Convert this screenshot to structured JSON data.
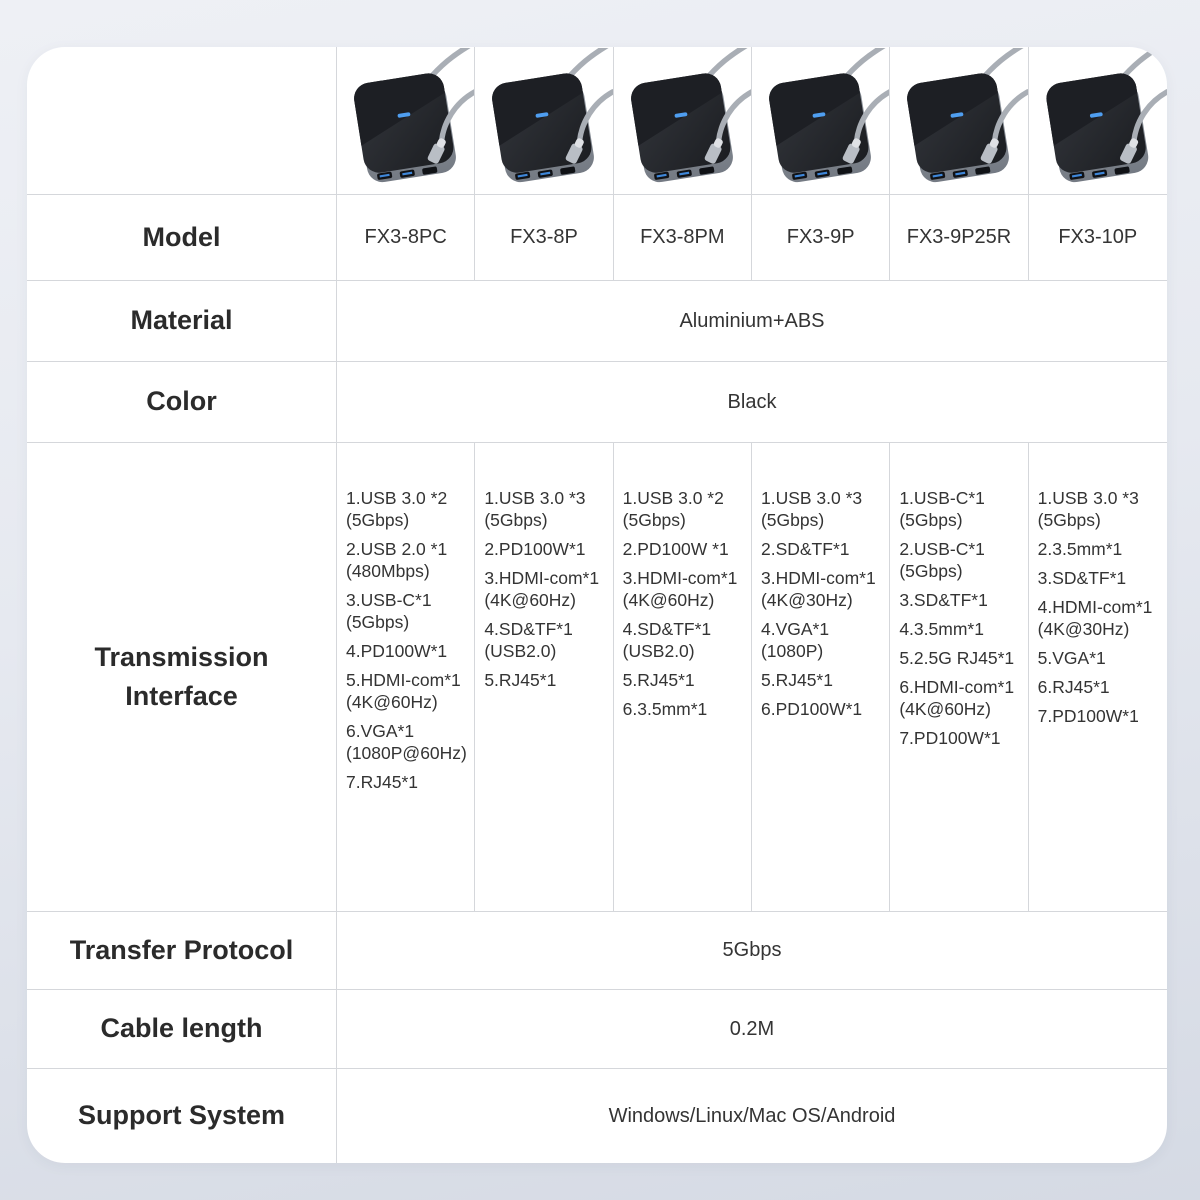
{
  "page": {
    "background_top": "#eef0f5",
    "background_bottom": "#d5dae4",
    "card_color": "#ffffff",
    "border_color": "#d5d7db"
  },
  "table": {
    "row_headers": {
      "model": "Model",
      "material": "Material",
      "color": "Color",
      "transmission": "Transmission\nInterface",
      "transfer_protocol": "Transfer Protocol",
      "cable_length": "Cable length",
      "support_system": "Support System"
    },
    "shared_values": {
      "material": "Aluminium+ABS",
      "color": "Black",
      "transfer_protocol": "5Gbps",
      "cable_length": "0.2M",
      "support_system": "Windows/Linux/Mac OS/Android"
    },
    "columns": [
      {
        "model": "FX3-8PC",
        "image": "usb-c-hub-photo",
        "interface": [
          "1.USB 3.0 *2\n(5Gbps)",
          "2.USB 2.0 *1\n(480Mbps)",
          "3.USB-C*1\n(5Gbps)",
          "4.PD100W*1",
          "5.HDMI-com*1\n(4K@60Hz)",
          "6.VGA*1\n(1080P@60Hz)",
          "7.RJ45*1"
        ]
      },
      {
        "model": "FX3-8P",
        "image": "usb-c-hub-photo",
        "interface": [
          "1.USB 3.0 *3\n(5Gbps)",
          "2.PD100W*1",
          "3.HDMI-com*1\n(4K@60Hz)",
          "4.SD&TF*1\n(USB2.0)",
          "5.RJ45*1"
        ]
      },
      {
        "model": "FX3-8PM",
        "image": "usb-c-hub-photo",
        "interface": [
          "1.USB 3.0 *2\n(5Gbps)",
          "2.PD100W *1",
          "3.HDMI-com*1\n(4K@60Hz)",
          "4.SD&TF*1\n(USB2.0)",
          "5.RJ45*1",
          "6.3.5mm*1"
        ]
      },
      {
        "model": "FX3-9P",
        "image": "usb-c-hub-photo",
        "interface": [
          "1.USB 3.0 *3\n(5Gbps)",
          "2.SD&TF*1",
          "3.HDMI-com*1\n(4K@30Hz)",
          "4.VGA*1\n(1080P)",
          "5.RJ45*1",
          "6.PD100W*1"
        ]
      },
      {
        "model": "FX3-9P25R",
        "image": "usb-c-hub-photo",
        "interface": [
          "1.USB-C*1\n(5Gbps)",
          "2.USB-C*1\n(5Gbps)",
          "3.SD&TF*1",
          "4.3.5mm*1",
          "5.2.5G RJ45*1",
          "6.HDMI-com*1\n(4K@60Hz)",
          "7.PD100W*1"
        ]
      },
      {
        "model": "FX3-10P",
        "image": "usb-c-hub-photo",
        "interface": [
          "1.USB 3.0 *3\n(5Gbps)",
          "2.3.5mm*1",
          "3.SD&TF*1",
          "4.HDMI-com*1\n(4K@30Hz)",
          "5.VGA*1",
          "6.RJ45*1",
          "7.PD100W*1"
        ]
      }
    ],
    "colors": {
      "hub_body": "#26292e",
      "hub_metal": "#8a9099",
      "led": "#4f9ef0",
      "usb_tongue": "#3f87d9",
      "cable": "#a9aeb5"
    }
  }
}
